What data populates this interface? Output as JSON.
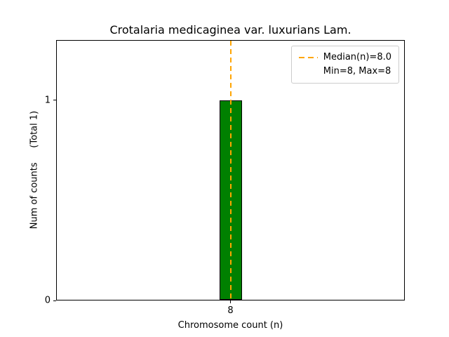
{
  "chart_data": {
    "type": "bar",
    "title": "Crotalaria medicaginea var. luxurians Lam.",
    "xlabel": "Chromosome count (n)",
    "ylabel": "Num of counts     (Total 1)",
    "categories": [
      "8"
    ],
    "values": [
      1
    ],
    "ylim": [
      0,
      1.3
    ],
    "yticks": [
      0,
      1
    ],
    "bar_color": "#008000",
    "bar_edge_color": "#000000",
    "grid": "off",
    "median_line": {
      "value": 8.0,
      "color": "#FFA500",
      "style": "dashed"
    },
    "legend": {
      "position": "upper right",
      "entries": [
        {
          "label": "Median(n)=8.0",
          "has_line_sample": true
        },
        {
          "label": "Min=8, Max=8",
          "has_line_sample": false
        }
      ]
    }
  }
}
